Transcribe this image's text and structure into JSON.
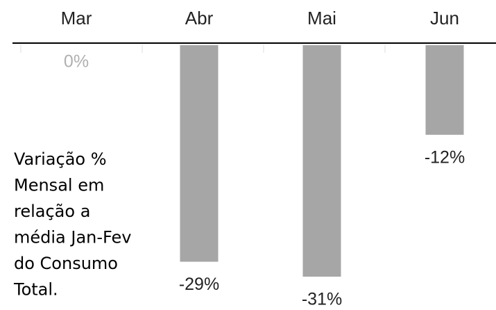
{
  "chart_data": {
    "type": "bar",
    "categories": [
      "Mar",
      "Abr",
      "Mai",
      "Jun"
    ],
    "values": [
      0,
      -29,
      -31,
      -12
    ],
    "value_labels": [
      "0%",
      "-29%",
      "-31%",
      "-12%"
    ],
    "color": "#a6a6a6",
    "ylim": [
      -35,
      0
    ],
    "annotation": [
      "Variação %",
      "Mensal em",
      "relação a",
      "média Jan-Fev",
      "do Consumo",
      "Total."
    ]
  }
}
